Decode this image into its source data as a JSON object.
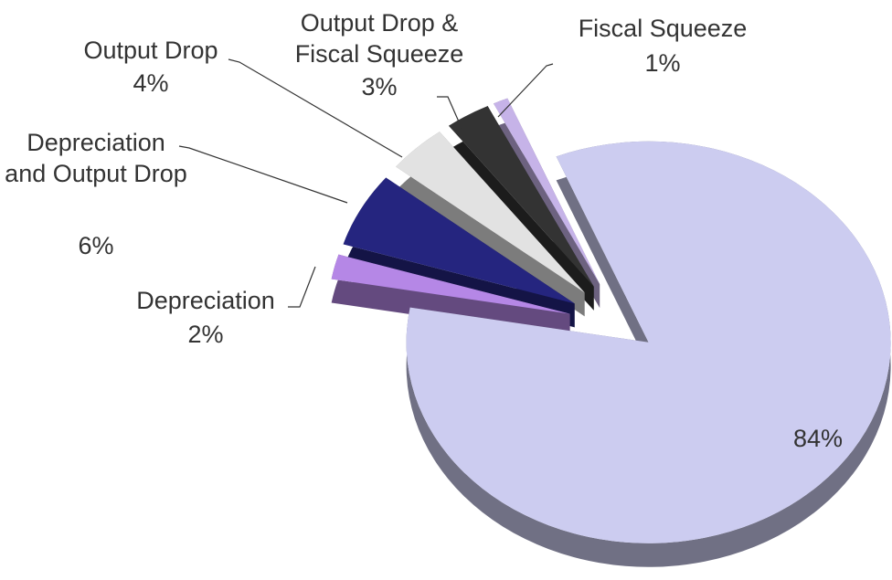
{
  "chart_data": {
    "type": "pie",
    "categories": [
      "Depreciation",
      "Depreciation and Output Drop",
      "Output Drop",
      "Output Drop & Fiscal Squeeze",
      "Fiscal Squeeze",
      null
    ],
    "values": [
      2,
      6,
      4,
      3,
      1,
      84
    ],
    "value_labels": [
      "2%",
      "6%",
      "4%",
      "3%",
      "1%",
      "84%"
    ],
    "colors": [
      "#b587e6",
      "#25257f",
      "#e2e2e2",
      "#333333",
      "#c6b3e8",
      "#ccccf0"
    ]
  }
}
